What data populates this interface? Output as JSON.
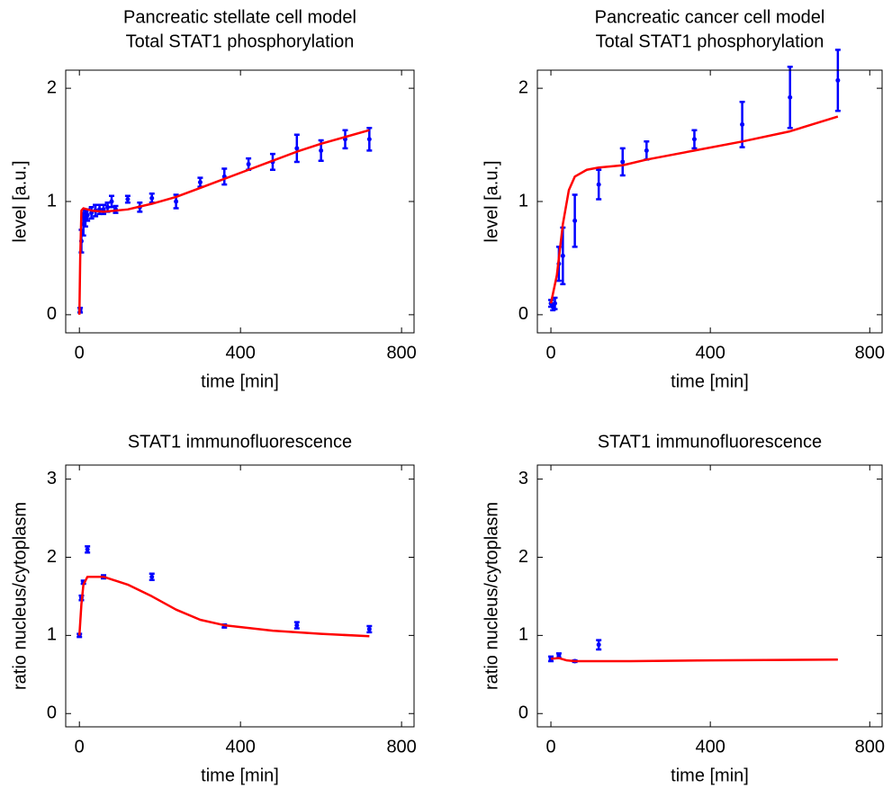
{
  "chart_data": [
    {
      "type": "errorbar",
      "title": "Pancreatic stellate cell model",
      "subtitle": "Total STAT1 phosphorylation",
      "x_label": "time [min]",
      "y_label": "level [a.u.]",
      "xlim": [
        -34,
        831
      ],
      "ylim": [
        -0.16,
        2.16
      ],
      "xticks": [
        0,
        400,
        800
      ],
      "yticks": [
        0,
        1,
        2
      ],
      "series": [
        {
          "type": "errorbar",
          "color": "#0000ff",
          "x": [
            2,
            5,
            10,
            15,
            20,
            30,
            40,
            50,
            60,
            70,
            80,
            90,
            120,
            150,
            180,
            240,
            300,
            360,
            420,
            480,
            540,
            600,
            660,
            720
          ],
          "values": [
            0.04,
            0.65,
            0.8,
            0.85,
            0.88,
            0.9,
            0.92,
            0.93,
            0.93,
            0.95,
            1.0,
            0.93,
            1.02,
            0.95,
            1.03,
            1.0,
            1.17,
            1.22,
            1.33,
            1.35,
            1.47,
            1.45,
            1.55,
            1.55
          ],
          "errors": [
            0.02,
            0.1,
            0.1,
            0.07,
            0.05,
            0.05,
            0.05,
            0.04,
            0.04,
            0.04,
            0.05,
            0.03,
            0.03,
            0.04,
            0.04,
            0.06,
            0.04,
            0.07,
            0.05,
            0.07,
            0.12,
            0.09,
            0.08,
            0.1
          ]
        },
        {
          "type": "line",
          "color": "#ff0000",
          "x": [
            0,
            2,
            5,
            10,
            30,
            60,
            120,
            180,
            240,
            300,
            360,
            420,
            480,
            540,
            600,
            660,
            720
          ],
          "values": [
            0,
            0.5,
            0.92,
            0.94,
            0.92,
            0.91,
            0.93,
            0.98,
            1.04,
            1.12,
            1.2,
            1.28,
            1.36,
            1.44,
            1.51,
            1.57,
            1.63
          ]
        }
      ]
    },
    {
      "type": "errorbar",
      "title": "Pancreatic cancer cell model",
      "subtitle": "Total STAT1 phosphorylation",
      "x_label": "time [min]",
      "y_label": "level [a.u.]",
      "xlim": [
        -34,
        831
      ],
      "ylim": [
        -0.16,
        2.16
      ],
      "xticks": [
        0,
        400,
        800
      ],
      "yticks": [
        0,
        1,
        2
      ],
      "series": [
        {
          "type": "errorbar",
          "color": "#0000ff",
          "x": [
            0,
            5,
            10,
            20,
            30,
            60,
            120,
            180,
            240,
            360,
            480,
            600,
            720
          ],
          "values": [
            0.1,
            0.07,
            0.1,
            0.45,
            0.52,
            0.83,
            1.15,
            1.35,
            1.45,
            1.55,
            1.68,
            1.92,
            2.07
          ],
          "errors": [
            0.03,
            0.03,
            0.05,
            0.15,
            0.25,
            0.23,
            0.13,
            0.12,
            0.08,
            0.08,
            0.2,
            0.27,
            0.27
          ]
        },
        {
          "type": "line",
          "color": "#ff0000",
          "x": [
            0,
            15,
            30,
            45,
            60,
            90,
            120,
            180,
            240,
            360,
            480,
            600,
            720
          ],
          "values": [
            0.1,
            0.35,
            0.8,
            1.1,
            1.22,
            1.28,
            1.3,
            1.32,
            1.37,
            1.45,
            1.53,
            1.62,
            1.75
          ]
        }
      ]
    },
    {
      "type": "errorbar",
      "title": "STAT1 immunofluorescence",
      "x_label": "time [min]",
      "y_label": "ratio nucleus/cytoplasm",
      "xlim": [
        -34,
        831
      ],
      "ylim": [
        -0.17,
        3.18
      ],
      "xticks": [
        0,
        400,
        800
      ],
      "yticks": [
        0,
        1,
        2,
        3
      ],
      "series": [
        {
          "type": "errorbar",
          "color": "#0000ff",
          "x": [
            0,
            5,
            10,
            20,
            60,
            180,
            360,
            540,
            720
          ],
          "values": [
            1.0,
            1.48,
            1.68,
            2.1,
            1.75,
            1.75,
            1.12,
            1.13,
            1.08
          ],
          "errors": [
            0.02,
            0.03,
            0.02,
            0.04,
            0.02,
            0.04,
            0.02,
            0.04,
            0.04
          ]
        },
        {
          "type": "line",
          "color": "#ff0000",
          "x": [
            0,
            5,
            10,
            20,
            60,
            120,
            180,
            240,
            300,
            360,
            480,
            600,
            720
          ],
          "values": [
            1.0,
            1.4,
            1.65,
            1.75,
            1.75,
            1.65,
            1.5,
            1.33,
            1.2,
            1.13,
            1.06,
            1.02,
            0.99
          ]
        }
      ]
    },
    {
      "type": "errorbar",
      "title": "STAT1 immunofluorescence",
      "x_label": "time [min]",
      "y_label": "ratio nucleus/cytoplasm",
      "xlim": [
        -34,
        831
      ],
      "ylim": [
        -0.17,
        3.18
      ],
      "xticks": [
        0,
        400,
        800
      ],
      "yticks": [
        0,
        1,
        2,
        3
      ],
      "series": [
        {
          "type": "errorbar",
          "color": "#0000ff",
          "x": [
            0,
            20,
            60,
            120
          ],
          "values": [
            0.7,
            0.74,
            0.67,
            0.88
          ],
          "errors": [
            0.03,
            0.03,
            0.01,
            0.06
          ]
        },
        {
          "type": "line",
          "color": "#ff0000",
          "x": [
            0,
            20,
            40,
            60,
            200,
            400,
            720
          ],
          "values": [
            0.7,
            0.71,
            0.68,
            0.67,
            0.67,
            0.68,
            0.69
          ]
        }
      ]
    }
  ]
}
